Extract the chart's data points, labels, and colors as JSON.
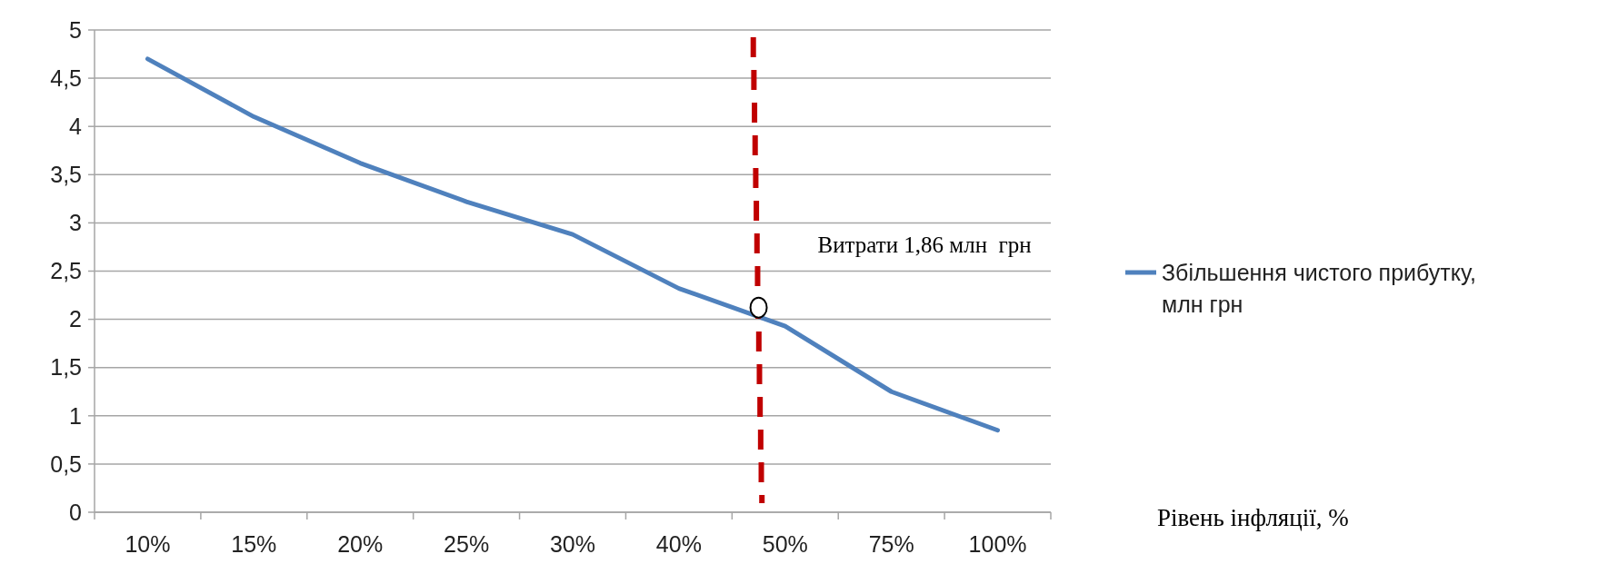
{
  "chart_data": {
    "type": "line",
    "xlabel": "Рівень інфляції, %",
    "categories": [
      "10%",
      "15%",
      "20%",
      "25%",
      "30%",
      "40%",
      "50%",
      "75%",
      "100%"
    ],
    "series": [
      {
        "name": "Збільшення чистого прибутку, млн грн",
        "color": "#4f81bd",
        "values": [
          4.7,
          4.1,
          3.62,
          3.22,
          2.88,
          2.32,
          1.93,
          1.25,
          0.85
        ]
      }
    ],
    "ylim": [
      0,
      5
    ],
    "yticks": [
      0,
      {
        "value": 0.5,
        "label": "0,5"
      },
      1,
      {
        "value": 1.5,
        "label": "1,5"
      },
      2,
      {
        "value": 2.5,
        "label": "2,5"
      },
      3,
      {
        "value": 3.5,
        "label": "3,5"
      },
      4,
      {
        "value": 4.5,
        "label": "4,5"
      },
      5
    ],
    "annotations": [
      "Витрати 1,86 млн  грн"
    ],
    "grid": "y",
    "legend": "right",
    "marker": "none",
    "line_style": "solid"
  }
}
